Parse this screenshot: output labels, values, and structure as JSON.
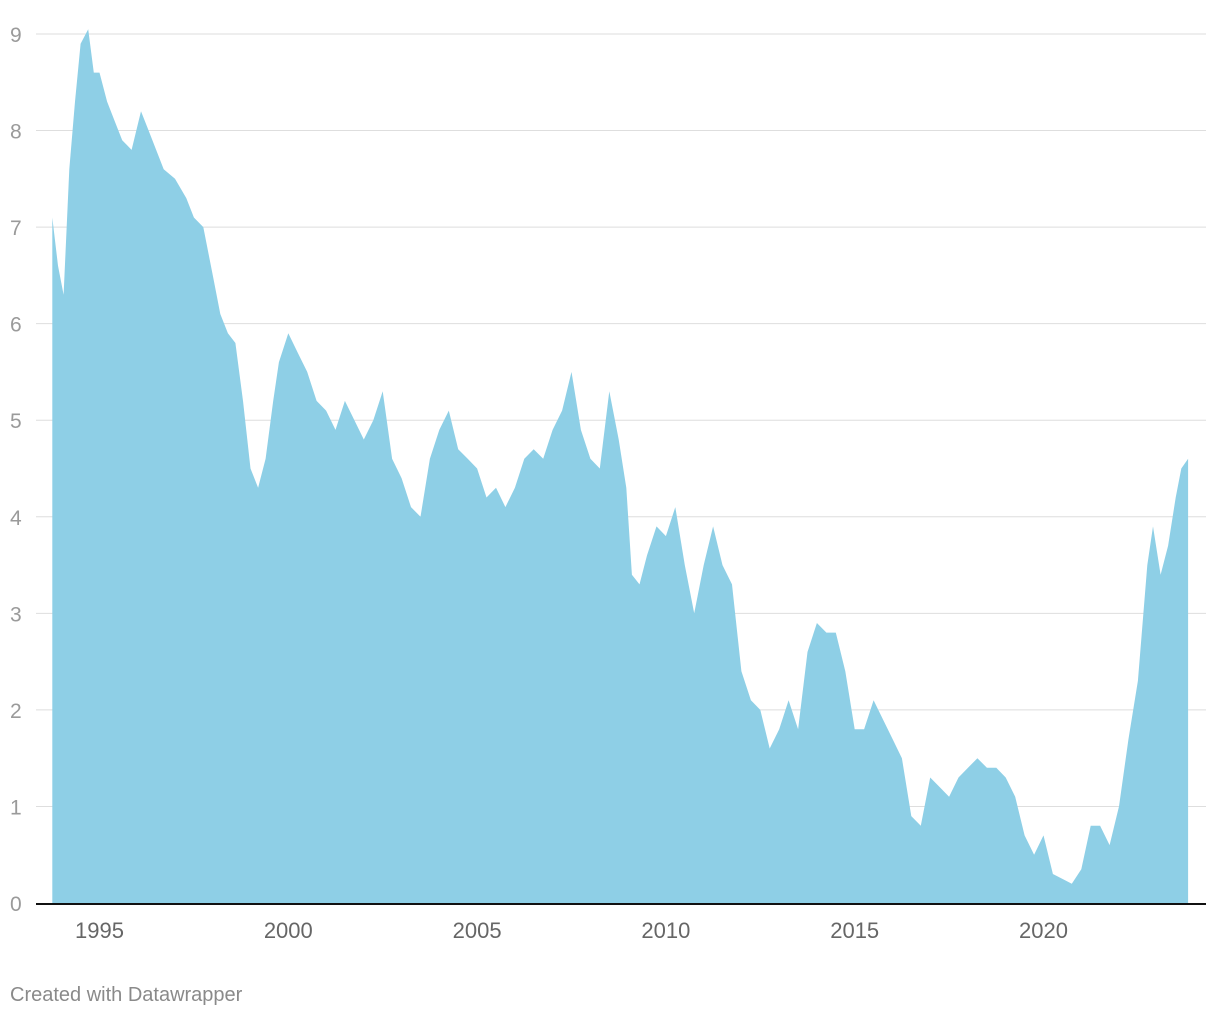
{
  "chart_data": {
    "type": "area",
    "title": "",
    "xlabel": "",
    "ylabel": "",
    "x_range": [
      1993.75,
      2023.83
    ],
    "ylim": [
      0,
      9
    ],
    "yticks": [
      0,
      1,
      2,
      3,
      4,
      5,
      6,
      7,
      8,
      9
    ],
    "xticks": [
      1995,
      2000,
      2005,
      2010,
      2015,
      2020
    ],
    "grid": true,
    "legend": "none",
    "fill_color": "#8ecfe6",
    "series": [
      {
        "x": [
          1993.75,
          1993.9,
          1994.05,
          1994.2,
          1994.35,
          1994.5,
          1994.7,
          1994.85,
          1995,
          1995.2,
          1995.4,
          1995.6,
          1995.85,
          1996.1,
          1996.4,
          1996.7,
          1997,
          1997.3,
          1997.5,
          1997.75,
          1998,
          1998.2,
          1998.4,
          1998.6,
          1998.8,
          1999.0,
          1999.2,
          1999.4,
          1999.6,
          1999.75,
          2000.0,
          2000.25,
          2000.5,
          2000.75,
          2001.0,
          2001.25,
          2001.5,
          2001.75,
          2002.0,
          2002.25,
          2002.5,
          2002.75,
          2003.0,
          2003.25,
          2003.5,
          2003.75,
          2004.0,
          2004.25,
          2004.5,
          2004.75,
          2005.0,
          2005.25,
          2005.5,
          2005.75,
          2006.0,
          2006.25,
          2006.5,
          2006.75,
          2007.0,
          2007.25,
          2007.5,
          2007.75,
          2008.0,
          2008.25,
          2008.5,
          2008.75,
          2008.95,
          2009.1,
          2009.3,
          2009.5,
          2009.75,
          2010.0,
          2010.25,
          2010.5,
          2010.75,
          2011.0,
          2011.25,
          2011.5,
          2011.75,
          2012.0,
          2012.25,
          2012.5,
          2012.75,
          2013.0,
          2013.25,
          2013.5,
          2013.75,
          2014.0,
          2014.25,
          2014.5,
          2014.75,
          2015.0,
          2015.25,
          2015.5,
          2015.75,
          2016.0,
          2016.25,
          2016.5,
          2016.75,
          2017.0,
          2017.25,
          2017.5,
          2017.75,
          2018.0,
          2018.25,
          2018.5,
          2018.75,
          2019.0,
          2019.25,
          2019.5,
          2019.75,
          2020.0,
          2020.25,
          2020.5,
          2020.75,
          2021.0,
          2021.25,
          2021.5,
          2021.75,
          2022.0,
          2022.25,
          2022.5,
          2022.75,
          2022.9,
          2023.1,
          2023.3,
          2023.5,
          2023.65,
          2023.83
        ],
        "y": [
          7.1,
          6.6,
          6.3,
          7.6,
          8.3,
          8.9,
          9.05,
          8.6,
          8.6,
          8.3,
          8.1,
          7.9,
          7.8,
          8.2,
          7.9,
          7.6,
          7.5,
          7.3,
          7.1,
          7.0,
          6.5,
          6.1,
          5.9,
          5.8,
          5.2,
          4.5,
          4.3,
          4.6,
          5.2,
          5.6,
          5.9,
          5.7,
          5.5,
          5.2,
          5.1,
          4.9,
          5.2,
          5.0,
          4.8,
          5.0,
          5.3,
          4.6,
          4.4,
          4.1,
          4.0,
          4.6,
          4.9,
          5.1,
          4.7,
          4.6,
          4.5,
          4.2,
          4.3,
          4.1,
          4.3,
          4.6,
          4.7,
          4.6,
          4.9,
          5.1,
          5.5,
          4.9,
          4.6,
          4.5,
          5.3,
          4.8,
          4.3,
          3.4,
          3.3,
          3.6,
          3.9,
          3.8,
          4.1,
          3.5,
          3.0,
          3.5,
          3.9,
          3.5,
          3.3,
          2.4,
          2.1,
          2.0,
          1.6,
          1.8,
          2.1,
          1.8,
          2.6,
          2.9,
          2.8,
          2.8,
          2.4,
          1.8,
          1.8,
          2.1,
          1.9,
          1.7,
          1.5,
          0.9,
          0.8,
          1.3,
          1.2,
          1.1,
          1.3,
          1.4,
          1.5,
          1.4,
          1.4,
          1.3,
          1.1,
          0.7,
          0.5,
          0.7,
          0.3,
          0.25,
          0.2,
          0.35,
          0.8,
          0.8,
          0.6,
          1.0,
          1.7,
          2.3,
          3.5,
          3.9,
          3.4,
          3.7,
          4.2,
          4.5,
          4.6
        ]
      }
    ]
  },
  "footer": {
    "credit": "Created with Datawrapper"
  }
}
